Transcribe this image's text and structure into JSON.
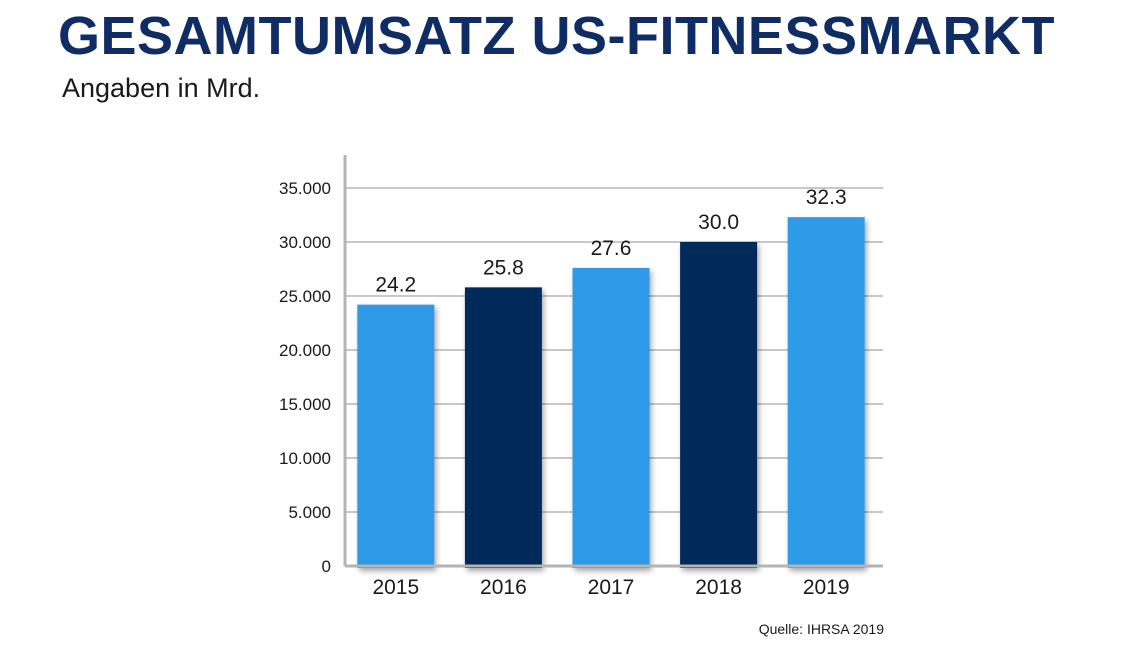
{
  "header": {
    "title": "GESAMTUMSATZ US-FITNESSMARKT",
    "subtitle": "Angaben in Mrd."
  },
  "footer": {
    "source": "Quelle: IHRSA 2019"
  },
  "colors": {
    "title": "#0f2d64",
    "bar_light": "#2e9ae8",
    "bar_dark": "#062a5a",
    "grid": "#c8c8c8",
    "axis": "#b4b4b4"
  },
  "chart_data": {
    "type": "bar",
    "title": "GESAMTUMSATZ US-FITNESSMARKT",
    "subtitle": "Angaben in Mrd.",
    "categories": [
      "2015",
      "2016",
      "2017",
      "2018",
      "2019"
    ],
    "values": [
      24.2,
      25.8,
      27.6,
      30.0,
      32.3
    ],
    "data_labels": [
      "24.2",
      "25.8",
      "27.6",
      "30.0",
      "32.3"
    ],
    "bar_colors": [
      "#2e9ae8",
      "#062a5a",
      "#2e9ae8",
      "#062a5a",
      "#2e9ae8"
    ],
    "ylim": [
      0,
      35
    ],
    "yticks": [
      0,
      5,
      10,
      15,
      20,
      25,
      30,
      35
    ],
    "ytick_labels": [
      "0",
      "5.000",
      "10.000",
      "15.000",
      "20.000",
      "25.000",
      "30.000",
      "35.000"
    ],
    "grid": true,
    "legend": "none",
    "source": "Quelle: IHRSA 2019"
  }
}
